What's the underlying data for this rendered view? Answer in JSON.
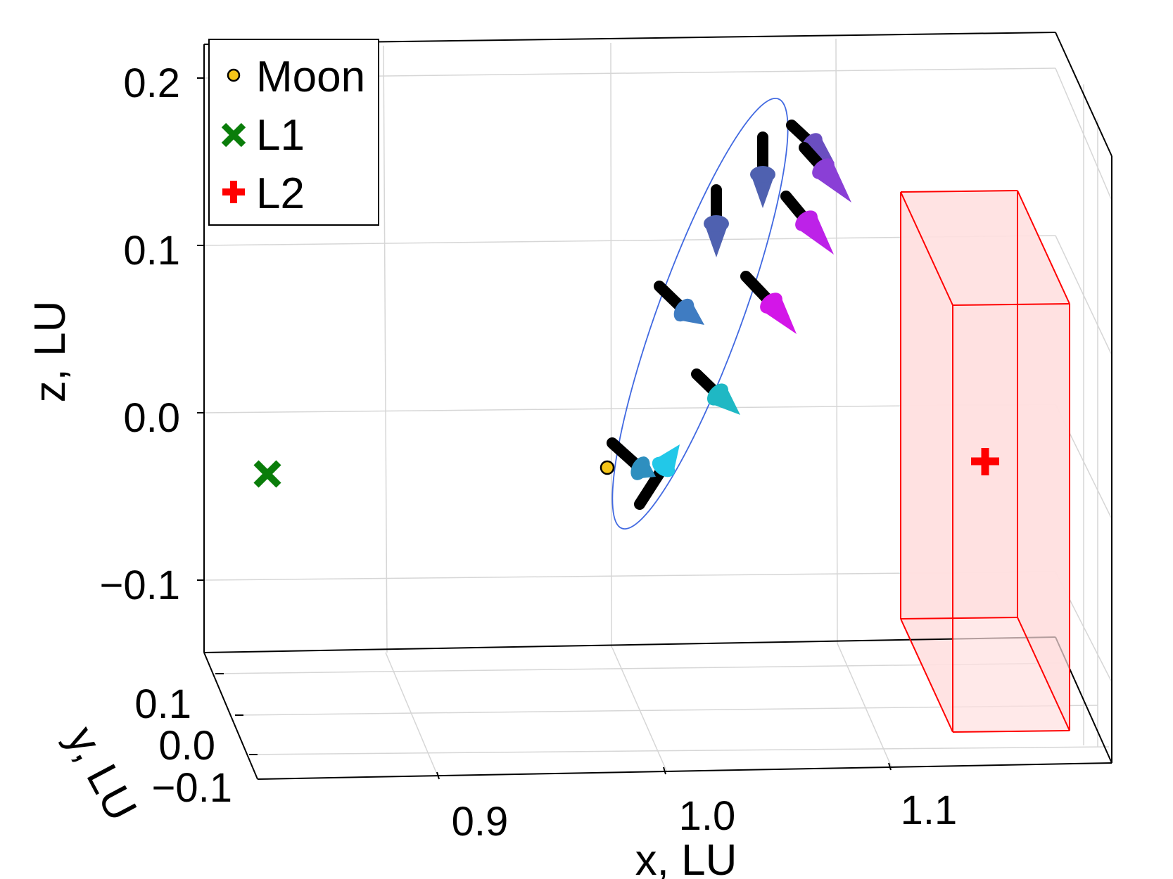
{
  "chart_data": {
    "type": "scatter",
    "projection": "3d",
    "xlabel": "x, LU",
    "ylabel": "y, LU",
    "zlabel": "z, LU",
    "xticks": [
      "0.9",
      "1.0",
      "1.1"
    ],
    "yticks": [
      "0.1",
      "0.0",
      "−0.1"
    ],
    "zticks": [
      "0.2",
      "0.1",
      "0.0",
      "−0.1"
    ],
    "xlim": [
      0.81,
      1.19
    ],
    "ylim": [
      -0.12,
      0.14
    ],
    "zlim": [
      -0.145,
      0.225
    ],
    "grid": true,
    "legend_position": "top-left",
    "legend": [
      {
        "label": "Moon",
        "marker": "circle",
        "color": "#f5c518"
      },
      {
        "label": "L1",
        "marker": "x-cross",
        "color": "#0a7d0a"
      },
      {
        "label": "L2",
        "marker": "plus",
        "color": "#ff0000"
      }
    ],
    "points": {
      "moon": {
        "x": 0.988,
        "y": 0.0,
        "z": -0.034
      },
      "L1": {
        "x": 0.836,
        "y": 0.0,
        "z": -0.038
      },
      "L2": {
        "x": 1.156,
        "y": 0.0,
        "z": -0.03
      }
    },
    "orbit_color": "#4169e1",
    "arrow_colors": [
      "#1ab6d8",
      "#2e8fbf",
      "#3f7cc2",
      "#4f61b0",
      "#6a4ec0",
      "#8a3fd6",
      "#a432e0",
      "#bd22e8",
      "#d316e8",
      "#1fb8c4",
      "#22c8e8"
    ],
    "box_color": "#ff0000",
    "box_fill": "#ffe0e0"
  }
}
